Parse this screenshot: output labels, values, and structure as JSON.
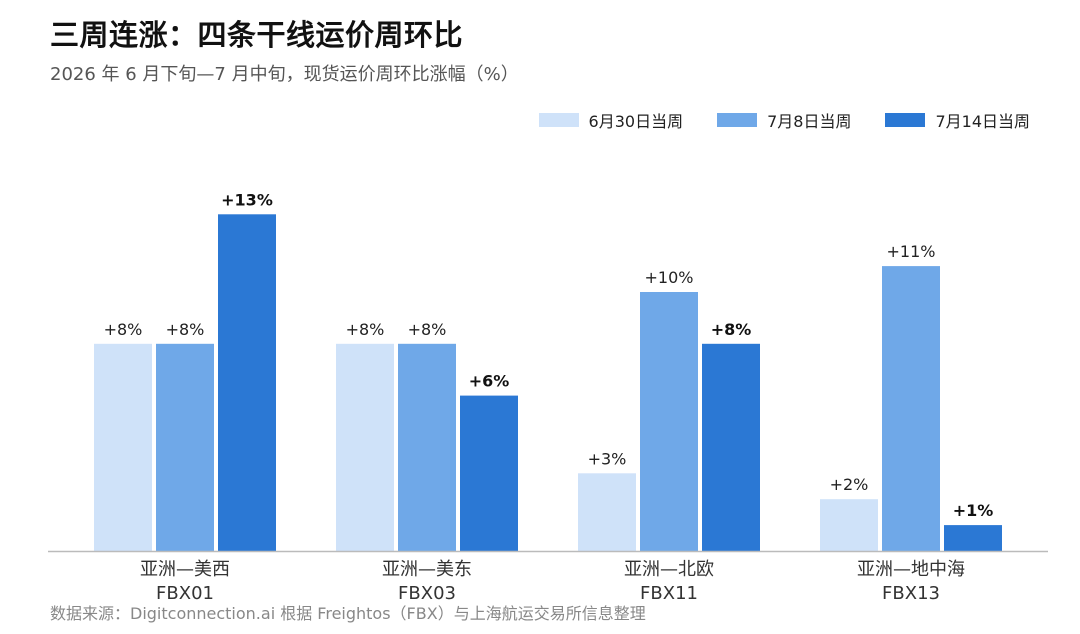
{
  "title": "三周连涨：四条干线运价周环比",
  "subtitle": "2026 年 6 月下旬—7 月中旬，现货运价周环比涨幅（%）",
  "source": "数据来源：Digitconnection.ai 根据 Freightos（FBX）与上海航运交易所信息整理",
  "colors": {
    "series_1": "#cfe2f9",
    "series_2": "#6fa8e8",
    "series_3": "#2b78d4",
    "axis": "#bbbbbb"
  },
  "chart_data": {
    "type": "bar",
    "categories": [
      {
        "route": "亚洲—美西",
        "code": "FBX01"
      },
      {
        "route": "亚洲—美东",
        "code": "FBX03"
      },
      {
        "route": "亚洲—北欧",
        "code": "FBX11"
      },
      {
        "route": "亚洲—地中海",
        "code": "FBX13"
      }
    ],
    "series": [
      {
        "name": "6月30日当周",
        "values": [
          8,
          8,
          3,
          2
        ],
        "labels": [
          "+8%",
          "+8%",
          "+3%",
          "+2%"
        ]
      },
      {
        "name": "7月8日当周",
        "values": [
          8,
          8,
          10,
          11
        ],
        "labels": [
          "+8%",
          "+8%",
          "+10%",
          "+11%"
        ]
      },
      {
        "name": "7月14日当周",
        "values": [
          13,
          6,
          8,
          1
        ],
        "labels": [
          "+13%",
          "+6%",
          "+8%",
          "+1%"
        ]
      }
    ],
    "ylim": [
      0,
      13
    ],
    "grid": false,
    "legend_position": "top-right"
  }
}
